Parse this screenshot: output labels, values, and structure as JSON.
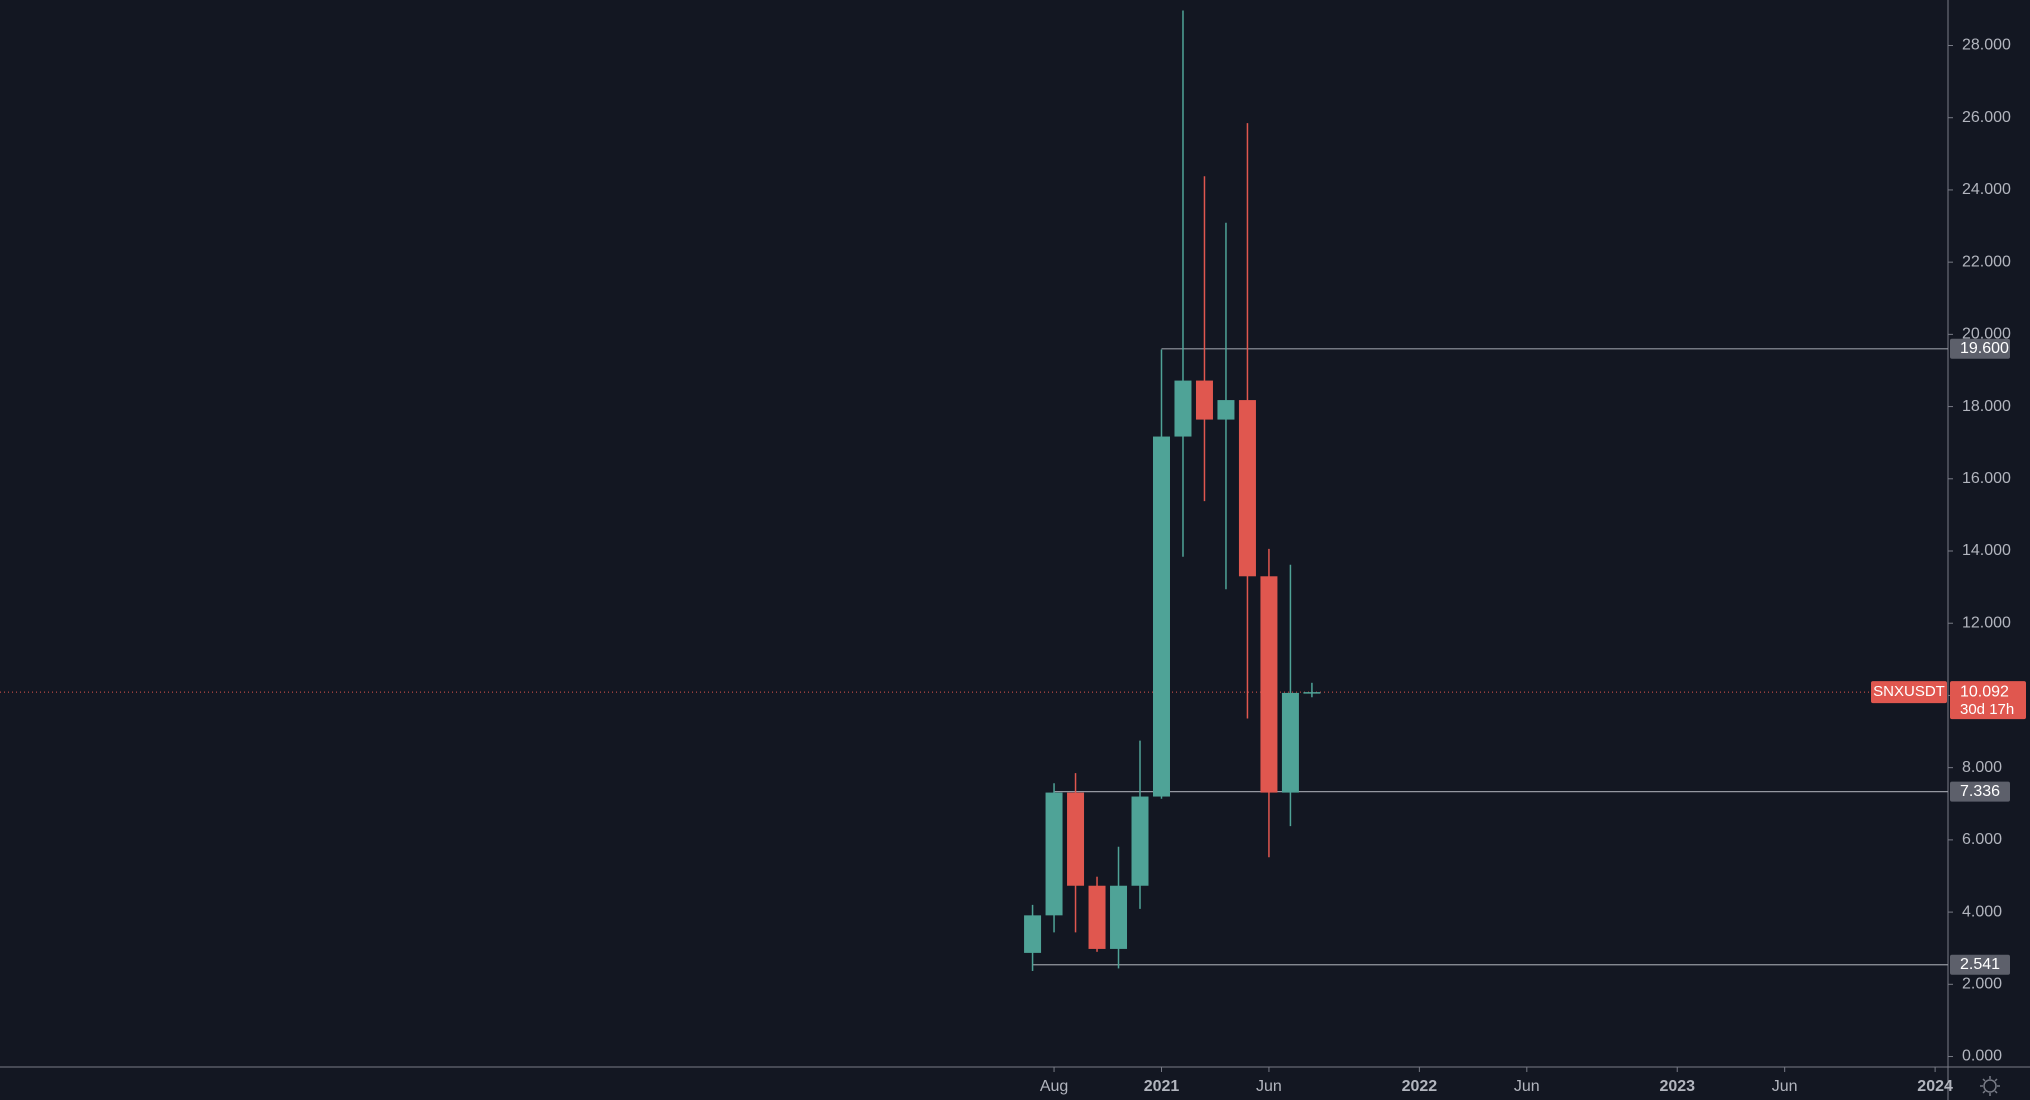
{
  "chart_data": {
    "type": "candlestick",
    "symbol": "SNXUSDT",
    "countdown": "30d 17h",
    "up_color": "#4fa397",
    "down_color": "#e0574f",
    "open": [
      2.87,
      3.91,
      7.31,
      4.73,
      2.98,
      4.73,
      7.2,
      17.17,
      18.72,
      17.64,
      18.18,
      13.3,
      7.31,
      10.07
    ],
    "high": [
      4.2,
      7.57,
      7.85,
      4.98,
      5.81,
      8.75,
      19.58,
      28.97,
      24.38,
      23.09,
      25.85,
      14.06,
      13.62,
      10.35
    ],
    "low": [
      2.37,
      3.44,
      3.44,
      2.9,
      2.44,
      4.09,
      7.14,
      13.84,
      15.38,
      12.94,
      9.36,
      5.52,
      6.38,
      9.95
    ],
    "close": [
      3.91,
      7.31,
      4.73,
      2.98,
      4.73,
      7.2,
      17.17,
      18.72,
      17.64,
      18.18,
      13.3,
      7.31,
      10.07,
      10.092
    ],
    "xlim": [
      -48.05,
      42.6
    ],
    "xticks": [
      {
        "value": 1,
        "label": "Aug"
      },
      {
        "value": 6,
        "label": "2021"
      },
      {
        "value": 11,
        "label": "Jun"
      },
      {
        "value": 18,
        "label": "2022"
      },
      {
        "value": 23,
        "label": "Jun"
      },
      {
        "value": 30,
        "label": "2023"
      },
      {
        "value": 35,
        "label": "Jun"
      },
      {
        "value": 42,
        "label": "2024"
      }
    ],
    "ylim": [
      -0.29,
      29.26
    ],
    "yticks": [
      {
        "value": 0,
        "label": "0.000"
      },
      {
        "value": 2,
        "label": "2.000"
      },
      {
        "value": 4,
        "label": "4.000"
      },
      {
        "value": 6,
        "label": "6.000"
      },
      {
        "value": 8,
        "label": "8.000"
      },
      {
        "value": 10,
        "label": "10.000"
      },
      {
        "value": 12,
        "label": "12.000"
      },
      {
        "value": 14,
        "label": "14.000"
      },
      {
        "value": 16,
        "label": "16.000"
      },
      {
        "value": 18,
        "label": "18.000"
      },
      {
        "value": 20,
        "label": "20.000"
      },
      {
        "value": 22,
        "label": "22.000"
      },
      {
        "value": 24,
        "label": "24.000"
      },
      {
        "value": 26,
        "label": "26.000"
      },
      {
        "value": 28,
        "label": "28.000"
      }
    ],
    "levels": [
      {
        "value": 19.6,
        "label": "19.600"
      },
      {
        "value": 7.336,
        "label": "7.336"
      },
      {
        "value": 2.541,
        "label": "2.541"
      }
    ],
    "last_price": {
      "value": 10.092,
      "label": "10.092"
    }
  }
}
